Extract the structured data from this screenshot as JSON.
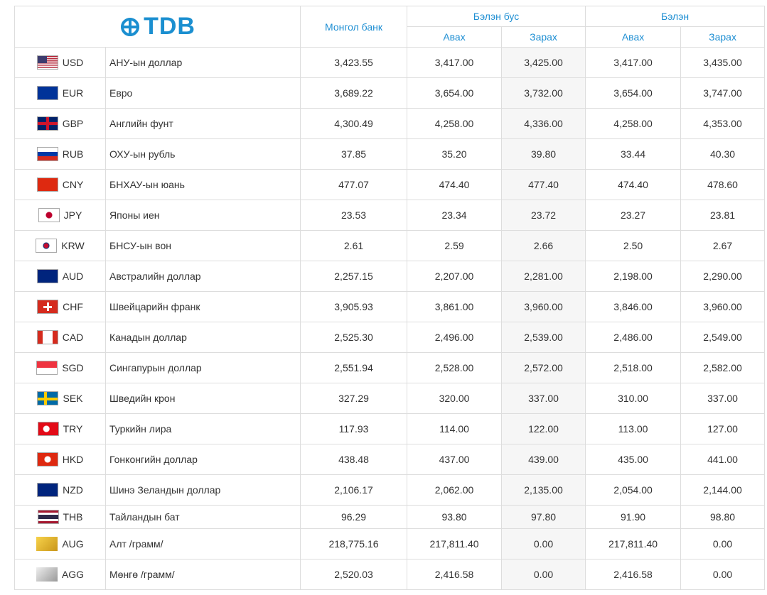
{
  "header": {
    "logo": "TDB",
    "mongolbank": "Монгол банк",
    "noncash": "Бэлэн бус",
    "cash": "Бэлэн",
    "subheaders": [
      "Авах",
      "Зарах",
      "Авах",
      "Зарах"
    ]
  },
  "table": {
    "rows": [
      [
        "USD",
        "АНУ-ын доллар",
        "3,423.55",
        "3,417.00",
        "3,425.00",
        "3,417.00",
        "3,435.00"
      ],
      [
        "EUR",
        "Евро",
        "3,689.22",
        "3,654.00",
        "3,732.00",
        "3,654.00",
        "3,747.00"
      ],
      [
        "GBP",
        "Английн фунт",
        "4,300.49",
        "4,258.00",
        "4,336.00",
        "4,258.00",
        "4,353.00"
      ],
      [
        "RUB",
        "ОХУ-ын рубль",
        "37.85",
        "35.20",
        "39.80",
        "33.44",
        "40.30"
      ],
      [
        "CNY",
        "БНХАУ-ын юань",
        "477.07",
        "474.40",
        "477.40",
        "474.40",
        "478.60"
      ],
      [
        "JPY",
        "Японы иен",
        "23.53",
        "23.34",
        "23.72",
        "23.27",
        "23.81"
      ],
      [
        "KRW",
        "БНСУ-ын вон",
        "2.61",
        "2.59",
        "2.66",
        "2.50",
        "2.67"
      ],
      [
        "AUD",
        "Австралийн доллар",
        "2,257.15",
        "2,207.00",
        "2,281.00",
        "2,198.00",
        "2,290.00"
      ],
      [
        "CHF",
        "Швейцарийн франк",
        "3,905.93",
        "3,861.00",
        "3,960.00",
        "3,846.00",
        "3,960.00"
      ],
      [
        "CAD",
        "Канадын доллар",
        "2,525.30",
        "2,496.00",
        "2,539.00",
        "2,486.00",
        "2,549.00"
      ],
      [
        "SGD",
        "Сингапурын доллар",
        "2,551.94",
        "2,528.00",
        "2,572.00",
        "2,518.00",
        "2,582.00"
      ],
      [
        "SEK",
        "Шведийн крон",
        "327.29",
        "320.00",
        "337.00",
        "310.00",
        "337.00"
      ],
      [
        "TRY",
        "Туркийн лира",
        "117.93",
        "114.00",
        "122.00",
        "113.00",
        "127.00"
      ],
      [
        "HKD",
        "Гонконгийн доллар",
        "438.48",
        "437.00",
        "439.00",
        "435.00",
        "441.00"
      ],
      [
        "NZD",
        "Шинэ Зеландын доллар",
        "2,106.17",
        "2,062.00",
        "2,135.00",
        "2,054.00",
        "2,144.00"
      ],
      [
        "THB",
        "Тайландын бат",
        "96.29",
        "93.80",
        "97.80",
        "91.90",
        "98.80"
      ],
      [
        "AUG",
        "Алт /грамм/",
        "218,775.16",
        "217,811.40",
        "0.00",
        "217,811.40",
        "0.00"
      ],
      [
        "AGG",
        "Мөнгө /грамм/",
        "2,520.03",
        "2,416.58",
        "0.00",
        "2,416.58",
        "0.00"
      ]
    ]
  }
}
